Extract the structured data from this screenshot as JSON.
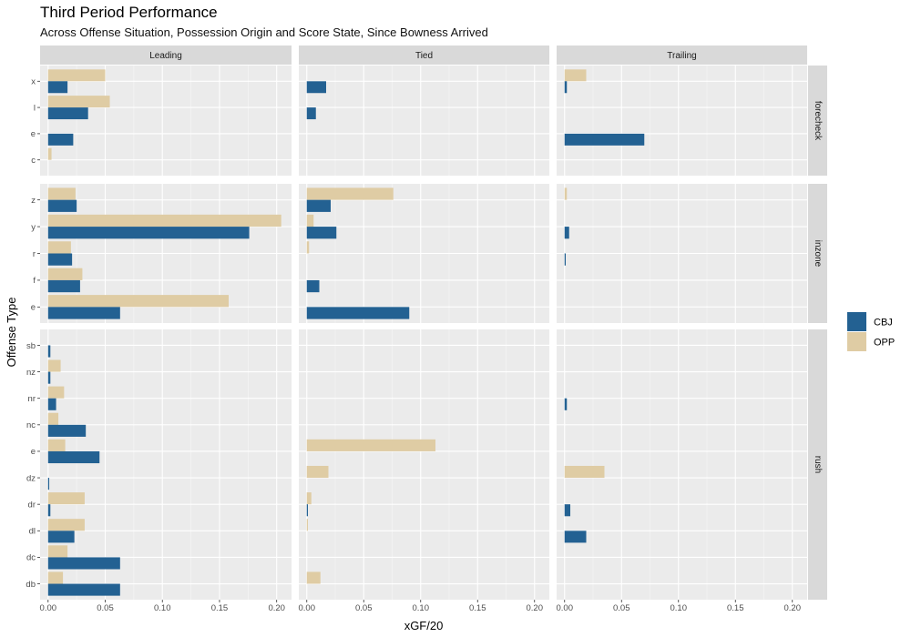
{
  "chart_data": {
    "type": "bar",
    "orientation": "horizontal",
    "title": "Third Period Performance",
    "subtitle": "Across Offense Situation, Possession Origin and Score State, Since Bowness Arrived",
    "xlabel": "xGF/20",
    "ylabel": "Offense Type",
    "xlim": [
      -0.007,
      0.213
    ],
    "xticks": [
      0.0,
      0.05,
      0.1,
      0.15,
      0.2
    ],
    "xtick_labels": [
      "0.00",
      "0.05",
      "0.10",
      "0.15",
      "0.20"
    ],
    "columns": [
      "Leading",
      "Tied",
      "Trailing"
    ],
    "rows": [
      {
        "name": "forecheck",
        "categories": [
          "x",
          "l",
          "e",
          "c"
        ]
      },
      {
        "name": "inzone",
        "categories": [
          "z",
          "y",
          "r",
          "f",
          "e"
        ]
      },
      {
        "name": "rush",
        "categories": [
          "sb",
          "nz",
          "nr",
          "nc",
          "e",
          "dz",
          "dr",
          "dl",
          "dc",
          "db"
        ]
      }
    ],
    "series": [
      {
        "name": "CBJ",
        "color": "#236192"
      },
      {
        "name": "OPP",
        "color": "#DFCCA4"
      }
    ],
    "legend_position": "right",
    "values": {
      "forecheck": {
        "Leading": {
          "CBJ": [
            0.017,
            0.035,
            0.022,
            0.0
          ],
          "OPP": [
            0.05,
            0.054,
            0.0,
            0.003
          ]
        },
        "Tied": {
          "CBJ": [
            0.017,
            0.008,
            0.0,
            0.0
          ],
          "OPP": [
            0.0,
            0.0,
            0.0,
            0.0
          ]
        },
        "Trailing": {
          "CBJ": [
            0.002,
            0.0,
            0.07,
            0.0
          ],
          "OPP": [
            0.019,
            0.0,
            0.0,
            0.0
          ]
        }
      },
      "inzone": {
        "Leading": {
          "CBJ": [
            0.025,
            0.176,
            0.021,
            0.028,
            0.063
          ],
          "OPP": [
            0.024,
            0.204,
            0.02,
            0.03,
            0.158
          ]
        },
        "Tied": {
          "CBJ": [
            0.021,
            0.026,
            0.0,
            0.011,
            0.09
          ],
          "OPP": [
            0.076,
            0.006,
            0.002,
            0.0,
            0.0
          ]
        },
        "Trailing": {
          "CBJ": [
            0.0,
            0.004,
            0.001,
            0.0,
            0.0
          ],
          "OPP": [
            0.002,
            0.0,
            0.0,
            0.0,
            0.0
          ]
        }
      },
      "rush": {
        "Leading": {
          "CBJ": [
            0.002,
            0.002,
            0.007,
            0.033,
            0.045,
            0.001,
            0.002,
            0.023,
            0.063,
            0.063
          ],
          "OPP": [
            0.0,
            0.011,
            0.014,
            0.009,
            0.015,
            0.0,
            0.032,
            0.032,
            0.017,
            0.013
          ]
        },
        "Tied": {
          "CBJ": [
            0.0,
            0.0,
            0.0,
            0.0,
            0.0,
            0.0,
            0.001,
            0.0,
            0.0,
            0.0
          ],
          "OPP": [
            0.0,
            0.0,
            0.0,
            0.0,
            0.113,
            0.019,
            0.004,
            0.001,
            0.0,
            0.012
          ]
        },
        "Trailing": {
          "CBJ": [
            0.0,
            0.0,
            0.002,
            0.0,
            0.0,
            0.0,
            0.005,
            0.019,
            0.0,
            0.0
          ],
          "OPP": [
            0.0,
            0.0,
            0.0,
            0.0,
            0.0,
            0.035,
            0.0,
            0.0,
            0.0,
            0.0
          ]
        }
      }
    }
  }
}
